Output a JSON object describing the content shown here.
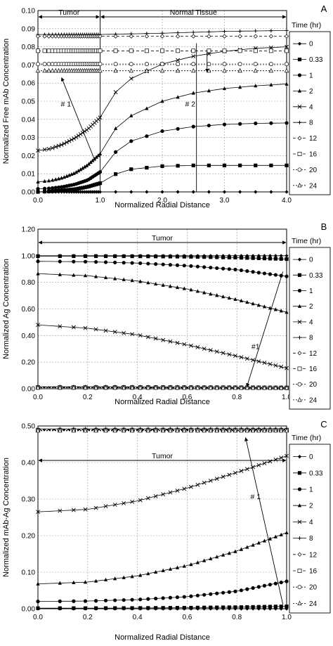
{
  "chart_data": [
    {
      "type": "line",
      "panel_label": "A",
      "xlabel": "Normalized Radial Distance",
      "ylabel": "Normalized Free mAb Concentration",
      "xlim": [
        0,
        4
      ],
      "ylim": [
        0,
        0.1
      ],
      "xticks": [
        "0.0",
        "1.0",
        "2.0",
        "3.0",
        "4.0"
      ],
      "yticks": [
        "0.00",
        "0.01",
        "0.02",
        "0.03",
        "0.04",
        "0.05",
        "0.06",
        "0.07",
        "0.08",
        "0.09",
        "0.10"
      ],
      "legend_title": "Time (hr)",
      "legend_position": "right",
      "grid": true,
      "regions": [
        {
          "label": "Tumor",
          "x_start": 0,
          "x_end": 1
        },
        {
          "label": "Normal Tissue",
          "x_start": 1,
          "x_end": 4
        }
      ],
      "annotations": [
        {
          "text": "# 1",
          "x": 0.45,
          "y": 0.047
        },
        {
          "text": "# 2",
          "x": 2.45,
          "y": 0.047
        }
      ],
      "series": [
        {
          "name": "0",
          "marker": "diamond",
          "x": [
            0.0,
            0.5,
            1.0,
            1.5,
            2.0,
            2.5,
            3.0,
            3.5,
            4.0
          ],
          "y": [
            0.0,
            0.0,
            0.0,
            0.0,
            0.0,
            0.0,
            0.0,
            0.0,
            0.0
          ]
        },
        {
          "name": "0.33",
          "marker": "square",
          "x": [
            0.0,
            0.2,
            0.4,
            0.6,
            0.8,
            1.0,
            1.25,
            1.5,
            2.0,
            2.5,
            3.0,
            3.5,
            4.0
          ],
          "y": [
            0.0,
            0.0003,
            0.0008,
            0.0015,
            0.0028,
            0.0048,
            0.0098,
            0.0125,
            0.0142,
            0.0146,
            0.0146,
            0.0146,
            0.0146
          ]
        },
        {
          "name": "1",
          "marker": "circle",
          "x": [
            0.0,
            0.2,
            0.4,
            0.6,
            0.8,
            1.0,
            1.25,
            1.5,
            2.0,
            2.5,
            3.0,
            3.5,
            4.0
          ],
          "y": [
            0.0017,
            0.002,
            0.0028,
            0.0042,
            0.0065,
            0.011,
            0.022,
            0.028,
            0.0335,
            0.036,
            0.0372,
            0.0378,
            0.038
          ]
        },
        {
          "name": "2",
          "marker": "triangle",
          "x": [
            0.0,
            0.2,
            0.4,
            0.6,
            0.8,
            1.0,
            1.25,
            1.5,
            2.0,
            2.5,
            3.0,
            3.5,
            4.0
          ],
          "y": [
            0.0055,
            0.0062,
            0.0078,
            0.0105,
            0.0148,
            0.021,
            0.035,
            0.042,
            0.05,
            0.0545,
            0.057,
            0.0585,
            0.0595
          ]
        },
        {
          "name": "4",
          "marker": "x",
          "x": [
            0.0,
            0.2,
            0.4,
            0.6,
            0.8,
            1.0,
            1.25,
            1.5,
            2.0,
            2.5,
            3.0,
            3.5,
            4.0
          ],
          "y": [
            0.0228,
            0.0238,
            0.0262,
            0.0298,
            0.0345,
            0.041,
            0.055,
            0.0625,
            0.0705,
            0.0748,
            0.0775,
            0.0792,
            0.08
          ]
        },
        {
          "name": "8",
          "marker": "plus",
          "x": [
            0.0,
            0.5,
            1.0,
            2.0,
            3.0,
            4.0
          ],
          "y": [
            0.0868,
            0.0868,
            0.0868,
            0.0875,
            0.0885,
            0.089
          ]
        },
        {
          "name": "12",
          "marker": "dash-diamond",
          "x": [
            0.0,
            0.5,
            1.0,
            2.0,
            3.0,
            4.0
          ],
          "y": [
            0.0858,
            0.0858,
            0.0858,
            0.0858,
            0.0858,
            0.0858
          ]
        },
        {
          "name": "16",
          "marker": "open-square",
          "x": [
            0.0,
            0.5,
            1.0,
            2.0,
            3.0,
            4.0
          ],
          "y": [
            0.0778,
            0.0778,
            0.0778,
            0.0778,
            0.0778,
            0.0778
          ]
        },
        {
          "name": "20",
          "marker": "open-circle",
          "x": [
            0.0,
            0.5,
            1.0,
            2.0,
            3.0,
            4.0
          ],
          "y": [
            0.0705,
            0.0705,
            0.0705,
            0.0705,
            0.0705,
            0.0705
          ]
        },
        {
          "name": "24",
          "marker": "open-triangle",
          "x": [
            0.0,
            0.5,
            1.0,
            2.0,
            3.0,
            4.0
          ],
          "y": [
            0.0668,
            0.0668,
            0.0668,
            0.0668,
            0.0668,
            0.0668
          ]
        }
      ]
    },
    {
      "type": "line",
      "panel_label": "B",
      "xlabel": "Normalized Radial Distance",
      "ylabel": "Normalized Ag Concentration",
      "xlim": [
        0,
        1
      ],
      "ylim": [
        0,
        1.2
      ],
      "xticks": [
        "0.0",
        "0.2",
        "0.4",
        "0.6",
        "0.8",
        "1.0"
      ],
      "yticks": [
        "0.00",
        "0.20",
        "0.40",
        "0.60",
        "0.80",
        "1.00",
        "1.20"
      ],
      "legend_title": "Time (hr)",
      "legend_position": "right",
      "grid": true,
      "regions": [
        {
          "label": "Tumor",
          "x_start": 0,
          "x_end": 1
        }
      ],
      "annotations": [
        {
          "text": "#1",
          "x": 0.875,
          "y": 0.3
        }
      ],
      "series": [
        {
          "name": "0",
          "marker": "diamond",
          "x": [
            0.0,
            0.2,
            0.4,
            0.6,
            0.8,
            1.0
          ],
          "y": [
            1.0,
            1.0,
            1.0,
            1.0,
            1.0,
            1.0
          ]
        },
        {
          "name": "0.33",
          "marker": "square",
          "x": [
            0.0,
            0.2,
            0.4,
            0.6,
            0.8,
            1.0
          ],
          "y": [
            0.997,
            0.997,
            0.996,
            0.993,
            0.986,
            0.975
          ]
        },
        {
          "name": "1",
          "marker": "circle",
          "x": [
            0.0,
            0.2,
            0.4,
            0.6,
            0.8,
            1.0
          ],
          "y": [
            0.958,
            0.955,
            0.945,
            0.925,
            0.895,
            0.845
          ]
        },
        {
          "name": "2",
          "marker": "triangle",
          "x": [
            0.0,
            0.2,
            0.4,
            0.6,
            0.8,
            1.0
          ],
          "y": [
            0.865,
            0.85,
            0.81,
            0.75,
            0.67,
            0.575
          ]
        },
        {
          "name": "4",
          "marker": "x",
          "x": [
            0.0,
            0.2,
            0.4,
            0.6,
            0.8,
            1.0
          ],
          "y": [
            0.48,
            0.455,
            0.405,
            0.33,
            0.245,
            0.155
          ]
        },
        {
          "name": "8",
          "marker": "plus",
          "x": [
            0.0,
            0.2,
            0.4,
            0.6,
            0.8,
            1.0
          ],
          "y": [
            0.015,
            0.015,
            0.014,
            0.013,
            0.011,
            0.009
          ]
        },
        {
          "name": "12",
          "marker": "dash-diamond",
          "x": [
            0.0,
            0.2,
            0.4,
            0.6,
            0.8,
            1.0
          ],
          "y": [
            0.012,
            0.012,
            0.011,
            0.01,
            0.009,
            0.008
          ]
        },
        {
          "name": "16",
          "marker": "open-square",
          "x": [
            0.0,
            0.2,
            0.4,
            0.6,
            0.8,
            1.0
          ],
          "y": [
            0.01,
            0.01,
            0.01,
            0.009,
            0.008,
            0.007
          ]
        },
        {
          "name": "20",
          "marker": "open-circle",
          "x": [
            0.0,
            0.2,
            0.4,
            0.6,
            0.8,
            1.0
          ],
          "y": [
            0.008,
            0.008,
            0.008,
            0.007,
            0.007,
            0.006
          ]
        },
        {
          "name": "24",
          "marker": "open-triangle",
          "x": [
            0.0,
            0.2,
            0.4,
            0.6,
            0.8,
            1.0
          ],
          "y": [
            0.007,
            0.007,
            0.007,
            0.006,
            0.006,
            0.005
          ]
        }
      ]
    },
    {
      "type": "line",
      "panel_label": "C",
      "xlabel": "Normalized Radial Distance",
      "ylabel": "Normalized mAb-Ag Concentration",
      "xlim": [
        0,
        1
      ],
      "ylim": [
        0,
        0.5
      ],
      "xticks": [
        "0.0",
        "0.2",
        "0.4",
        "0.6",
        "0.8",
        "1.0"
      ],
      "yticks": [
        "0.00",
        "0.10",
        "0.20",
        "0.30",
        "0.40",
        "0.50"
      ],
      "legend_title": "Time (hr)",
      "legend_position": "right",
      "grid": true,
      "regions": [
        {
          "label": "Tumor",
          "x_start": 0,
          "x_end": 1
        }
      ],
      "annotations": [
        {
          "text": "# 1",
          "x": 0.875,
          "y": 0.3
        }
      ],
      "series": [
        {
          "name": "0",
          "marker": "diamond",
          "x": [
            0.0,
            0.2,
            0.4,
            0.6,
            0.8,
            1.0
          ],
          "y": [
            0.0,
            0.0,
            0.0,
            0.0,
            0.0,
            0.0
          ]
        },
        {
          "name": "0.33",
          "marker": "square",
          "x": [
            0.0,
            0.2,
            0.4,
            0.6,
            0.8,
            1.0
          ],
          "y": [
            0.0015,
            0.0016,
            0.002,
            0.0028,
            0.0042,
            0.0065
          ]
        },
        {
          "name": "1",
          "marker": "circle",
          "x": [
            0.0,
            0.2,
            0.4,
            0.6,
            0.8,
            1.0
          ],
          "y": [
            0.02,
            0.021,
            0.025,
            0.033,
            0.048,
            0.075
          ]
        },
        {
          "name": "2",
          "marker": "triangle",
          "x": [
            0.0,
            0.2,
            0.4,
            0.6,
            0.8,
            1.0
          ],
          "y": [
            0.068,
            0.073,
            0.09,
            0.118,
            0.158,
            0.208
          ]
        },
        {
          "name": "4",
          "marker": "x",
          "x": [
            0.0,
            0.2,
            0.4,
            0.6,
            0.8,
            1.0
          ],
          "y": [
            0.265,
            0.272,
            0.295,
            0.33,
            0.373,
            0.418
          ]
        },
        {
          "name": "8",
          "marker": "plus",
          "x": [
            0.0,
            0.2,
            0.4,
            0.6,
            0.8,
            1.0
          ],
          "y": [
            0.492,
            0.492,
            0.492,
            0.492,
            0.492,
            0.492
          ]
        },
        {
          "name": "12",
          "marker": "dash-diamond",
          "x": [
            0.0,
            0.2,
            0.4,
            0.6,
            0.8,
            1.0
          ],
          "y": [
            0.49,
            0.49,
            0.49,
            0.49,
            0.49,
            0.49
          ]
        },
        {
          "name": "16",
          "marker": "open-square",
          "x": [
            0.0,
            0.2,
            0.4,
            0.6,
            0.8,
            1.0
          ],
          "y": [
            0.489,
            0.489,
            0.489,
            0.489,
            0.489,
            0.489
          ]
        },
        {
          "name": "20",
          "marker": "open-circle",
          "x": [
            0.0,
            0.2,
            0.4,
            0.6,
            0.8,
            1.0
          ],
          "y": [
            0.488,
            0.488,
            0.488,
            0.488,
            0.488,
            0.488
          ]
        },
        {
          "name": "24",
          "marker": "open-triangle",
          "x": [
            0.0,
            0.2,
            0.4,
            0.6,
            0.8,
            1.0
          ],
          "y": [
            0.487,
            0.487,
            0.487,
            0.487,
            0.487,
            0.487
          ]
        }
      ]
    }
  ]
}
